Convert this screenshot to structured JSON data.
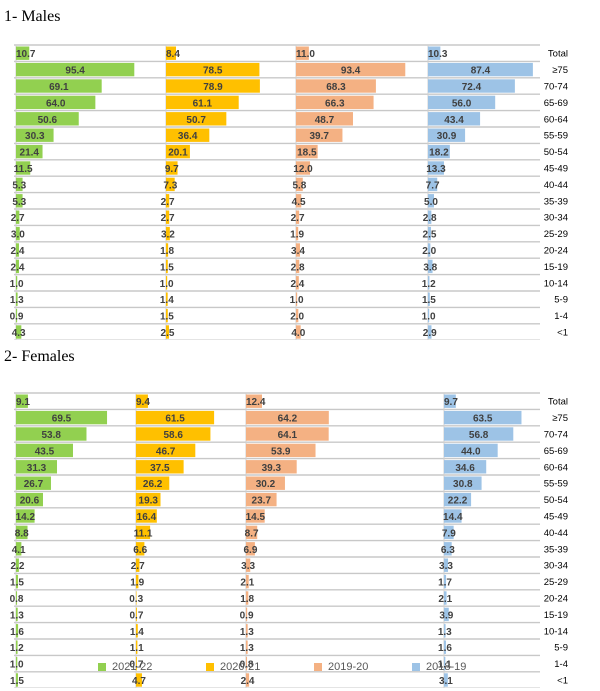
{
  "chart_data": [
    {
      "type": "bar",
      "title": "1-   Males",
      "categories": [
        "Total",
        "≥75",
        "70-74",
        "65-69",
        "60-64",
        "55-59",
        "50-54",
        "45-49",
        "40-44",
        "35-39",
        "30-34",
        "25-29",
        "20-24",
        "15-19",
        "10-14",
        "5-9",
        "1-4",
        "<1"
      ],
      "series": [
        {
          "name": "2021-22",
          "color": "#92d050",
          "values": [
            10.7,
            95.4,
            69.1,
            64.0,
            50.6,
            30.3,
            21.4,
            11.5,
            5.3,
            5.3,
            2.7,
            3.0,
            2.4,
            2.4,
            1.0,
            1.3,
            0.9,
            4.3
          ]
        },
        {
          "name": "2020-21",
          "color": "#ffc000",
          "values": [
            8.4,
            78.5,
            78.9,
            61.1,
            50.7,
            36.4,
            20.1,
            9.7,
            7.3,
            2.7,
            2.7,
            3.2,
            1.8,
            1.5,
            1.0,
            1.4,
            1.5,
            2.5
          ]
        },
        {
          "name": "2019-20",
          "color": "#f4b183",
          "values": [
            11.0,
            93.4,
            68.3,
            66.3,
            48.7,
            39.7,
            18.5,
            12.0,
            5.8,
            4.5,
            2.7,
            1.9,
            3.4,
            2.8,
            2.4,
            1.0,
            2.0,
            4.0
          ]
        },
        {
          "name": "2018-19",
          "color": "#9dc3e6",
          "values": [
            10.3,
            87.4,
            72.4,
            56.0,
            43.4,
            30.9,
            18.2,
            13.3,
            7.7,
            5.0,
            2.8,
            2.5,
            2.0,
            3.8,
            1.2,
            1.5,
            1.0,
            2.9
          ]
        }
      ]
    },
    {
      "type": "bar",
      "title": "2-   Females",
      "categories": [
        "Total",
        "≥75",
        "70-74",
        "65-69",
        "60-64",
        "55-59",
        "50-54",
        "45-49",
        "40-44",
        "35-39",
        "30-34",
        "25-29",
        "20-24",
        "15-19",
        "10-14",
        "5-9",
        "1-4",
        "<1"
      ],
      "series": [
        {
          "name": "2021-22",
          "color": "#92d050",
          "values": [
            9.1,
            69.5,
            53.8,
            43.5,
            31.3,
            26.7,
            20.6,
            14.2,
            8.8,
            4.1,
            2.2,
            1.5,
            0.8,
            1.3,
            1.6,
            1.2,
            1.0,
            1.5
          ]
        },
        {
          "name": "2020-21",
          "color": "#ffc000",
          "values": [
            9.4,
            61.5,
            58.6,
            46.7,
            37.5,
            26.2,
            19.3,
            16.4,
            11.1,
            6.6,
            2.7,
            1.9,
            0.3,
            0.7,
            1.4,
            1.1,
            0.7,
            4.7
          ]
        },
        {
          "name": "2019-20",
          "color": "#f4b183",
          "values": [
            12.4,
            64.2,
            64.1,
            53.9,
            39.3,
            30.2,
            23.7,
            14.5,
            8.7,
            6.9,
            3.3,
            2.1,
            1.8,
            0.9,
            1.3,
            1.3,
            0.8,
            2.4
          ]
        },
        {
          "name": "2018-19",
          "color": "#9dc3e6",
          "values": [
            9.7,
            63.5,
            56.8,
            44.0,
            34.6,
            30.8,
            22.2,
            14.4,
            7.9,
            6.3,
            3.3,
            1.7,
            2.1,
            3.9,
            1.3,
            1.6,
            1.1,
            3.1
          ]
        }
      ]
    }
  ],
  "legend": [
    {
      "label": "2021-22",
      "color": "#92d050"
    },
    {
      "label": "2020-21",
      "color": "#ffc000"
    },
    {
      "label": "2019-20",
      "color": "#f4b183"
    },
    {
      "label": "2018-19",
      "color": "#9dc3e6"
    }
  ]
}
